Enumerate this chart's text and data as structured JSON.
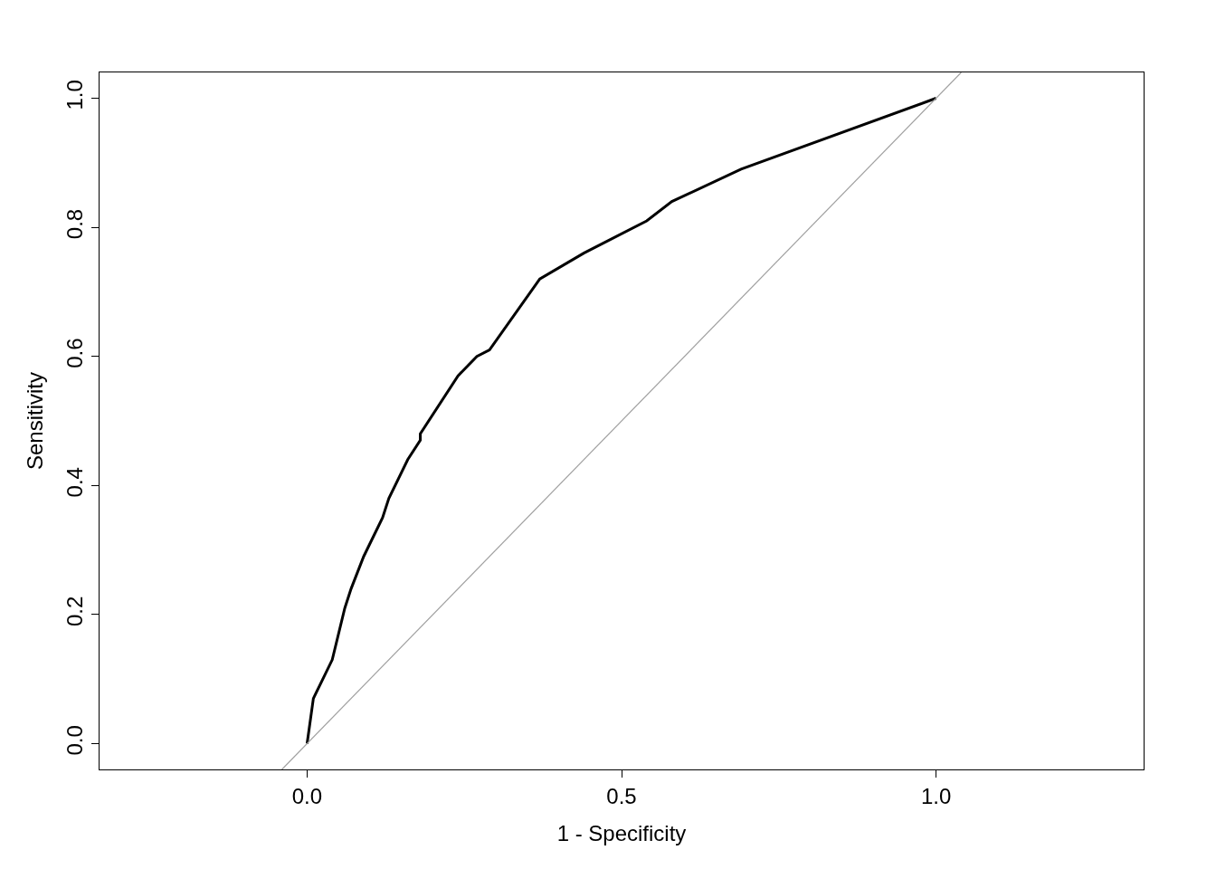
{
  "chart_data": {
    "type": "line",
    "xlabel": "1 - Specificity",
    "ylabel": "Sensitivity",
    "xlim": [
      -0.33,
      1.33
    ],
    "ylim": [
      -0.04,
      1.04
    ],
    "xticks": [
      {
        "value": 0,
        "label": "0.0"
      },
      0.5,
      {
        "value": 1,
        "label": "1.0"
      }
    ],
    "yticks": [
      {
        "value": 0,
        "label": "0.0"
      },
      0.2,
      0.4,
      0.6,
      0.8,
      {
        "value": 1,
        "label": "1.0"
      }
    ],
    "marker": "none",
    "line_style": "solid",
    "series": [
      {
        "color": "#000000",
        "x": [
          0,
          0.01,
          0.02,
          0.04,
          0.06,
          0.07,
          0.09,
          0.12,
          0.13,
          0.16,
          0.18,
          0.18,
          0.24,
          0.27,
          0.29,
          0.37,
          0.44,
          0.54,
          0.58,
          0.69,
          1
        ],
        "values": [
          0,
          0.07,
          0.09,
          0.13,
          0.21,
          0.24,
          0.29,
          0.35,
          0.38,
          0.44,
          0.47,
          0.48,
          0.57,
          0.6,
          0.61,
          0.72,
          0.76,
          0.81,
          0.84,
          0.89,
          1
        ]
      },
      {
        "color": "#a0a0a0",
        "x": [
          -0.04,
          1.04
        ],
        "values": [
          -0.04,
          1.04
        ]
      }
    ]
  }
}
